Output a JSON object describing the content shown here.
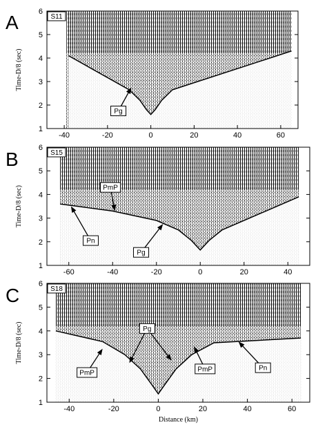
{
  "chart_data": [
    {
      "type": "heatmap",
      "panel_letter": "A",
      "station": "S11",
      "xlabel": "",
      "ylabel": "Time-D/8 (sec)",
      "xlim": [
        -48,
        68
      ],
      "ylim": [
        1,
        6
      ],
      "xticks": [
        -40,
        -20,
        0,
        20,
        40,
        60
      ],
      "yticks": [
        1,
        2,
        3,
        4,
        5,
        6
      ],
      "grid": false,
      "data_extent": [
        -39,
        65
      ],
      "pg_curve": {
        "x": [
          -38,
          -10,
          -5,
          -2,
          0,
          2,
          5,
          10,
          65
        ],
        "y": [
          4.1,
          2.65,
          2.2,
          1.8,
          1.6,
          1.8,
          2.2,
          2.65,
          4.3
        ]
      },
      "annotations": [
        {
          "text": "Pg",
          "label_x": -15,
          "label_y": 1.75,
          "arrows": [
            [
              -9,
              2.75
            ]
          ]
        }
      ]
    },
    {
      "type": "heatmap",
      "panel_letter": "B",
      "station": "S15",
      "xlabel": "",
      "ylabel": "Time-D/8 (sec)",
      "xlim": [
        -70,
        50
      ],
      "ylim": [
        1,
        6
      ],
      "xticks": [
        -60,
        -40,
        -20,
        0,
        20,
        40
      ],
      "yticks": [
        1,
        2,
        3,
        4,
        5,
        6
      ],
      "grid": false,
      "data_extent": [
        -64,
        45
      ],
      "pg_curve": {
        "x": [
          -64,
          -40,
          -20,
          -10,
          -4,
          0,
          4,
          10,
          45
        ],
        "y": [
          3.6,
          3.3,
          2.9,
          2.5,
          2.05,
          1.65,
          2.05,
          2.5,
          3.9
        ]
      },
      "annotations": [
        {
          "text": "PmP",
          "label_x": -41,
          "label_y": 4.3,
          "arrows": [
            [
              -39,
              3.3
            ]
          ]
        },
        {
          "text": "Pn",
          "label_x": -50,
          "label_y": 2.05,
          "arrows": [
            [
              -59,
              3.5
            ]
          ]
        },
        {
          "text": "Pg",
          "label_x": -27,
          "label_y": 1.55,
          "arrows": [
            [
              -17,
              2.75
            ]
          ]
        }
      ]
    },
    {
      "type": "heatmap",
      "panel_letter": "C",
      "station": "S18",
      "xlabel": "Distance (km)",
      "ylabel": "Time-D/8 (sec)",
      "xlim": [
        -50,
        68
      ],
      "ylim": [
        1,
        6
      ],
      "xticks": [
        -40,
        -20,
        0,
        20,
        40,
        60
      ],
      "yticks": [
        1,
        2,
        3,
        4,
        5,
        6
      ],
      "grid": false,
      "data_extent": [
        -46,
        64
      ],
      "pg_curve": {
        "x": [
          -46,
          -25,
          -15,
          -8,
          -3,
          0,
          3,
          8,
          15,
          25,
          64
        ],
        "y": [
          4.0,
          3.55,
          3.0,
          2.4,
          1.75,
          1.35,
          1.75,
          2.4,
          3.0,
          3.5,
          3.7
        ]
      },
      "annotations": [
        {
          "text": "Pg",
          "label_x": -5,
          "label_y": 4.1,
          "arrows": [
            [
              -13,
              2.65
            ],
            [
              6,
              2.75
            ]
          ]
        },
        {
          "text": "PmP",
          "label_x": -32,
          "label_y": 2.25,
          "arrows": [
            [
              -25,
              3.25
            ]
          ]
        },
        {
          "text": "PmP",
          "label_x": 21,
          "label_y": 2.4,
          "arrows": [
            [
              16,
              3.35
            ]
          ]
        },
        {
          "text": "Pn",
          "label_x": 47,
          "label_y": 2.45,
          "arrows": [
            [
              36,
              3.55
            ]
          ]
        }
      ]
    }
  ]
}
